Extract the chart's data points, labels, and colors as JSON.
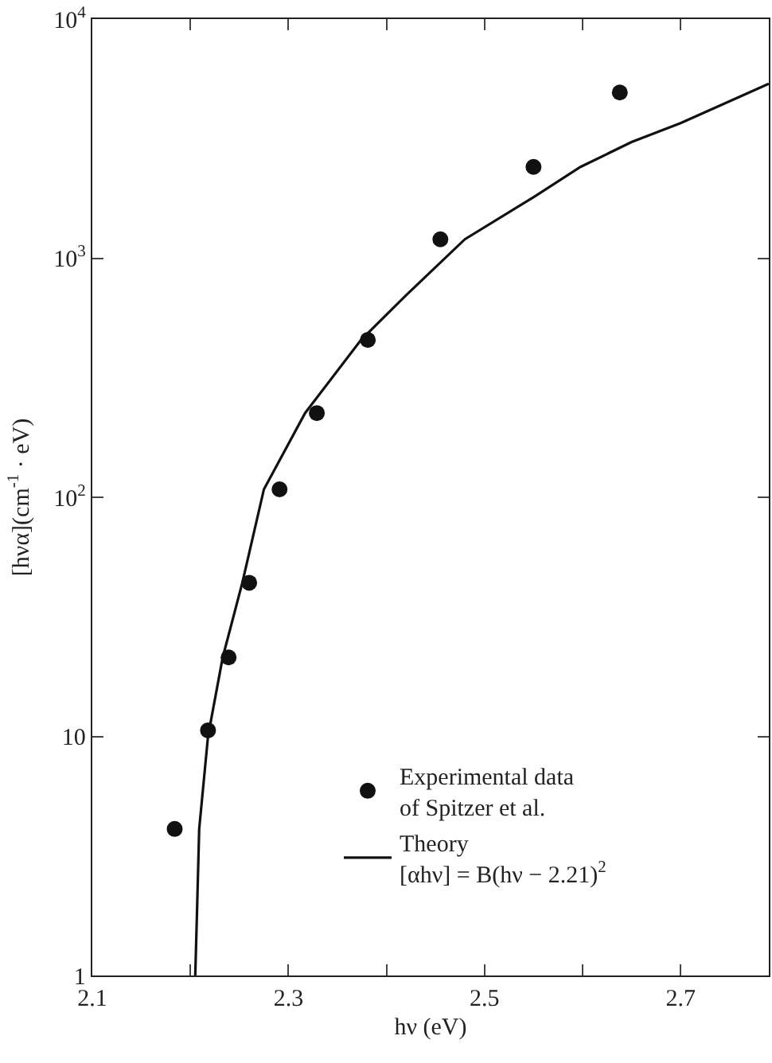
{
  "chart_data": {
    "type": "scatter",
    "xlabel": "hν (eV)",
    "ylabel": "[hνα](cm$^{-1}$ · eV)",
    "log": "y",
    "grid": false,
    "legend": "bottom right",
    "xlim": [
      2.1,
      2.79
    ],
    "ylim": [
      1,
      10000
    ],
    "xticks": [
      2.1,
      {
        "value": 2.2,
        "label": null
      },
      2.3,
      {
        "value": 2.4,
        "label": null
      },
      2.5,
      {
        "value": 2.6,
        "label": null
      },
      2.7
    ],
    "yticks": [
      1,
      10,
      {
        "value": 100,
        "label": "10$^{2}$"
      },
      {
        "value": 1000,
        "label": "10$^{3}$"
      },
      {
        "value": 10000,
        "label": "10$^{4}$"
      }
    ],
    "series": [
      {
        "name": "Experimental data\nof Spitzer et al.",
        "marker": "circle",
        "color": "#111111",
        "x": [
          2.184,
          2.218,
          2.239,
          2.26,
          2.291,
          2.329,
          2.381,
          2.455,
          2.55,
          2.638
        ],
        "values": [
          4.1,
          10.6,
          21.4,
          43.9,
          108,
          225,
          455,
          1200,
          2410,
          4930
        ]
      },
      {
        "name": "Theory\n[αhν] = B(hν − 2.21)$^{2}$",
        "type": "line",
        "marker": "none",
        "line_style": "solid",
        "color": "#111111",
        "x": [
          2.205,
          2.207,
          2.209,
          2.218,
          2.233,
          2.253,
          2.275,
          2.317,
          2.374,
          2.42,
          2.48,
          2.55,
          2.598,
          2.65,
          2.7,
          2.79
        ],
        "values": [
          1,
          2,
          4.1,
          10,
          21.4,
          43.9,
          108,
          225,
          455,
          700,
          1200,
          1800,
          2410,
          3060,
          3670,
          5370
        ]
      }
    ]
  }
}
